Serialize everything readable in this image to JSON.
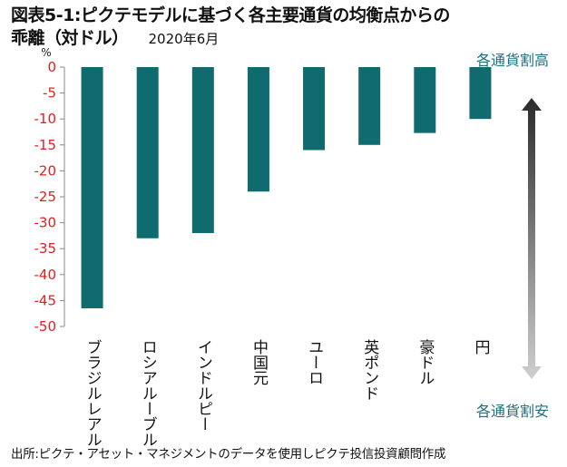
{
  "title": {
    "line1": "図表5-1:ピクテモデルに基づく各主要通貨の均衡点からの",
    "line2": "乖離（対ドル）",
    "date": "2020年6月"
  },
  "source": "出所:ピクテ・アセット・マネジメントのデータを使用しピクテ投信投資顧問作成",
  "chart_data": {
    "type": "bar",
    "categories": [
      "ブラジルレアル",
      "ロシアルーブル",
      "インドルピー",
      "中国元",
      "ユーロ",
      "英ポンド",
      "豪ドル",
      "円"
    ],
    "values": [
      -46.5,
      -33,
      -32,
      -24,
      -16,
      -15,
      -12.7,
      -10
    ],
    "ylabel": "%",
    "ylim": [
      -50,
      0
    ],
    "yticks": [
      0,
      -5,
      -10,
      -15,
      -20,
      -25,
      -30,
      -35,
      -40,
      -45,
      -50
    ],
    "grid": false,
    "annotations": {
      "top": "各通貨割高",
      "bottom": "各通貨割安"
    },
    "colors": {
      "bar": "#0f6b6e",
      "tick_label": "#e02020",
      "annotation": "#1d6f7e"
    }
  }
}
